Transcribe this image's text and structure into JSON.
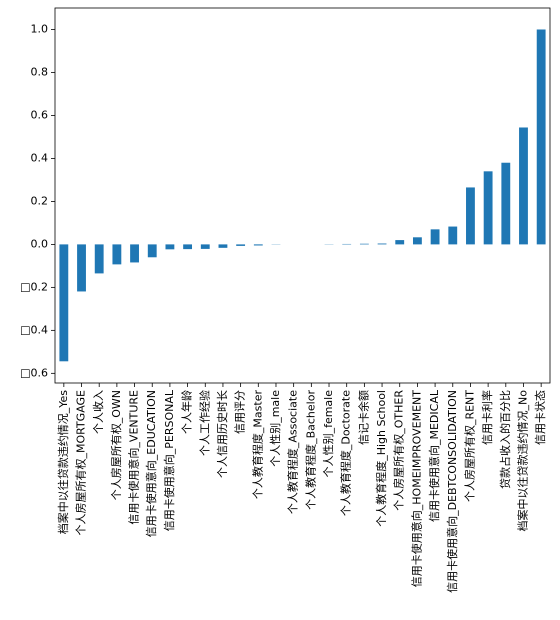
{
  "chart_data": {
    "type": "bar",
    "categories": [
      "档案中以往贷款违约情况_Yes",
      "个人房屋所有权_MORTGAGE",
      "个人收入",
      "个人房屋所有权_OWN",
      "信用卡使用意向_VENTURE",
      "信用卡使用意向_EDUCATION",
      "信用卡使用意向_PERSONAL",
      "个人年龄",
      "个人工作经验",
      "个人信用历史时长",
      "信用评分",
      "个人教育程度_Master",
      "个人性别_male",
      "个人教育程度_Associate",
      "个人教育程度_Bachelor",
      "个人性别_female",
      "个人教育程度_Doctorate",
      "信记卡余额",
      "个人教育程度_High School",
      "个人房屋所有权_OTHER",
      "信用卡使用意向_HOMEIMPROVEMENT",
      "信用卡使用意向_MEDICAL",
      "信用卡使用意向_DEBTCONSOLIDATION",
      "个人房屋所有权_RENT",
      "信用卡利率",
      "贷款占收入的百分比",
      "档案中以往贷款违约情况_No",
      "信用卡状态"
    ],
    "values": [
      -0.544,
      -0.219,
      -0.135,
      -0.093,
      -0.084,
      -0.06,
      -0.023,
      -0.022,
      -0.021,
      -0.016,
      -0.007,
      -0.005,
      -0.001,
      0.0,
      0.0,
      0.001,
      0.002,
      0.003,
      0.004,
      0.02,
      0.033,
      0.07,
      0.083,
      0.265,
      0.34,
      0.38,
      0.544,
      1.0
    ],
    "color": "#1f77b4",
    "ylim": [
      -0.645,
      1.1
    ],
    "yticks": [
      {
        "value": -0.6,
        "label": "□0.6"
      },
      {
        "value": -0.4,
        "label": "□0.4"
      },
      {
        "value": -0.2,
        "label": "□0.2"
      },
      {
        "value": 0,
        "label": "0.0"
      },
      0.2,
      0.4,
      0.6,
      0.8,
      {
        "value": 1,
        "label": "1.0"
      }
    ],
    "grid": false
  }
}
